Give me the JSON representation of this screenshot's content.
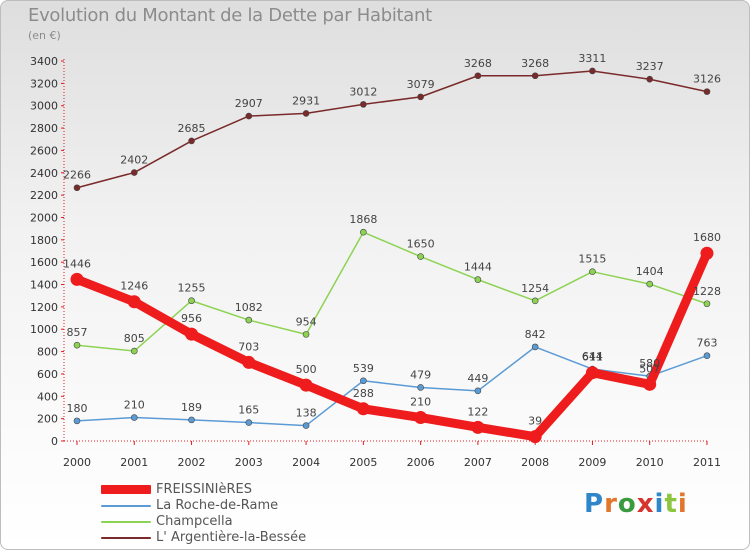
{
  "title": "Evolution du Montant de la Dette par Habitant",
  "subtitle": "(en €)",
  "logo": "Proxiti",
  "logo_colors": [
    "#2f86c8",
    "#e2762b",
    "#3a9a3e",
    "#d6342c",
    "#2f86c8",
    "#8cc63e",
    "#e2762b"
  ],
  "chart_data": {
    "type": "line",
    "title": "Evolution du Montant de la Dette par Habitant",
    "subtitle": "(en €)",
    "xlabel": "",
    "ylabel": "",
    "x": [
      "2000",
      "2001",
      "2002",
      "2003",
      "2004",
      "2005",
      "2006",
      "2007",
      "2008",
      "2009",
      "2010",
      "2011"
    ],
    "ylim": [
      0,
      3400
    ],
    "yticks": [
      0,
      200,
      400,
      600,
      800,
      1000,
      1200,
      1400,
      1600,
      1800,
      2000,
      2200,
      2400,
      2600,
      2800,
      3000,
      3200,
      3400
    ],
    "grid": false,
    "legend_position": "bottom-left",
    "series": [
      {
        "name": "FREISSINIèRES",
        "color": "#ee1c1c",
        "values": [
          1446,
          1246,
          956,
          703,
          500,
          288,
          210,
          122,
          39,
          611,
          507,
          1680
        ],
        "labels": [
          "1446",
          "1246",
          "956",
          "703",
          "500",
          "288",
          "210",
          "122",
          "39",
          "611",
          "507",
          "1680"
        ]
      },
      {
        "name": "La Roche-de-Rame",
        "color": "#5b9bd5",
        "values": [
          180,
          210,
          189,
          165,
          138,
          539,
          479,
          449,
          842,
          644,
          580,
          763
        ],
        "labels": [
          "180",
          "210",
          "189",
          "165",
          "138",
          "539",
          "479",
          "449",
          "842",
          "644",
          "580",
          "763"
        ]
      },
      {
        "name": "Champcella",
        "color": "#8dd353",
        "values": [
          857,
          805,
          1255,
          1082,
          954,
          1868,
          1650,
          1444,
          1254,
          1515,
          1404,
          1228
        ],
        "labels": [
          "857",
          "805",
          "1255",
          "1082",
          "954",
          "1868",
          "1650",
          "1444",
          "1254",
          "1515",
          "1404",
          "1228"
        ]
      },
      {
        "name": "L' Argentière-la-Bessée",
        "color": "#7a2a2a",
        "values": [
          2266,
          2402,
          2685,
          2907,
          2931,
          3012,
          3079,
          3268,
          3268,
          3311,
          3237,
          3126
        ],
        "labels": [
          "2266",
          "2402",
          "2685",
          "2907",
          "2931",
          "3012",
          "3079",
          "3268",
          "3268",
          "3311",
          "3237",
          "3126"
        ]
      }
    ]
  }
}
